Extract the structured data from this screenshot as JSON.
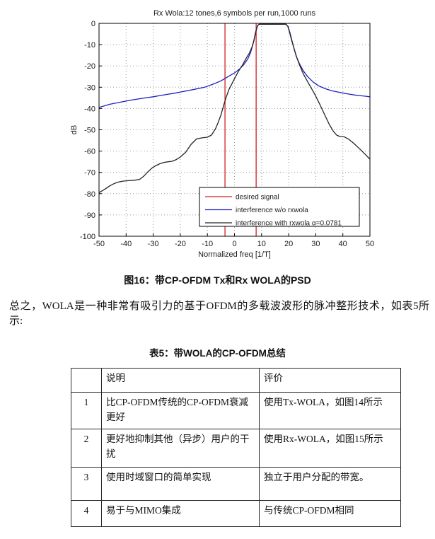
{
  "chart_data": {
    "type": "line",
    "title": "Rx Wola:12 tones,6 symbols per run,1000 runs",
    "xlabel": "Normalized freq [1/T]",
    "ylabel": "dB",
    "xlim": [
      -50,
      50
    ],
    "ylim": [
      -100,
      0
    ],
    "xticks": [
      -50,
      -40,
      -30,
      -20,
      -10,
      0,
      10,
      20,
      30,
      40,
      50
    ],
    "yticks": [
      0,
      -10,
      -20,
      -30,
      -40,
      -50,
      -60,
      -70,
      -80,
      -90,
      -100
    ],
    "grid": true,
    "legend": {
      "position": "south-center-inside"
    },
    "colors": {
      "desired": "#d02020",
      "no_rxwola": "#2020c0",
      "with_rxwola": "#252525",
      "grid": "#999999",
      "axis": "#000000"
    },
    "series": [
      {
        "name": "desired signal",
        "style": "vlines",
        "color": "#d02020",
        "x": [
          -3.5,
          8
        ],
        "y_span": [
          0,
          -100
        ]
      },
      {
        "name": "interference w/o rxwola",
        "style": "line",
        "color": "#2020c0",
        "points": [
          [
            -50,
            -39.5
          ],
          [
            -46,
            -38
          ],
          [
            -42,
            -37
          ],
          [
            -38,
            -36
          ],
          [
            -34,
            -35.2
          ],
          [
            -30,
            -34.5
          ],
          [
            -26,
            -33.6
          ],
          [
            -22,
            -32.8
          ],
          [
            -18,
            -31.8
          ],
          [
            -14,
            -30.8
          ],
          [
            -11,
            -30
          ],
          [
            -8,
            -28.6
          ],
          [
            -5,
            -27
          ],
          [
            -2,
            -24.8
          ],
          [
            0,
            -23.3
          ],
          [
            2,
            -21.3
          ],
          [
            3.5,
            -19.3
          ],
          [
            5,
            -16.5
          ],
          [
            6,
            -13.5
          ],
          [
            7,
            -9
          ],
          [
            7.8,
            -4
          ],
          [
            8.5,
            -1
          ],
          [
            9.2,
            -0.4
          ],
          [
            19,
            -0.4
          ],
          [
            19.8,
            -1.5
          ],
          [
            20.5,
            -4.5
          ],
          [
            21.2,
            -8
          ],
          [
            22,
            -12
          ],
          [
            23,
            -16
          ],
          [
            24,
            -19
          ],
          [
            25.5,
            -22.5
          ],
          [
            27,
            -25
          ],
          [
            29,
            -27.5
          ],
          [
            31,
            -29.3
          ],
          [
            33.5,
            -30.7
          ],
          [
            36,
            -31.7
          ],
          [
            39,
            -32.5
          ],
          [
            42,
            -33.2
          ],
          [
            45,
            -33.8
          ],
          [
            48,
            -34.2
          ],
          [
            50,
            -34.5
          ]
        ]
      },
      {
        "name": "interference with rxwola α=0.0781",
        "style": "line",
        "color": "#252525",
        "points": [
          [
            -50,
            -79.5
          ],
          [
            -48,
            -78
          ],
          [
            -46,
            -76.3
          ],
          [
            -44.5,
            -75.3
          ],
          [
            -43,
            -74.6
          ],
          [
            -41,
            -74.1
          ],
          [
            -39,
            -73.9
          ],
          [
            -37,
            -73.7
          ],
          [
            -35,
            -73.3
          ],
          [
            -33.5,
            -71.8
          ],
          [
            -32,
            -69.8
          ],
          [
            -30.5,
            -68
          ],
          [
            -29,
            -66.8
          ],
          [
            -27.5,
            -65.9
          ],
          [
            -26,
            -65.3
          ],
          [
            -24.5,
            -65
          ],
          [
            -23,
            -64.8
          ],
          [
            -21.5,
            -64
          ],
          [
            -20,
            -62.8
          ],
          [
            -18,
            -60.5
          ],
          [
            -16,
            -56.8
          ],
          [
            -14,
            -54.3
          ],
          [
            -12,
            -53.8
          ],
          [
            -10,
            -53.5
          ],
          [
            -8.5,
            -52.5
          ],
          [
            -7,
            -49.5
          ],
          [
            -6,
            -46.5
          ],
          [
            -5,
            -43
          ],
          [
            -4,
            -38.5
          ],
          [
            -3,
            -34.5
          ],
          [
            -2,
            -31
          ],
          [
            -1,
            -28.5
          ],
          [
            0,
            -26
          ],
          [
            1.5,
            -22.5
          ],
          [
            3,
            -19.5
          ],
          [
            4.5,
            -16
          ],
          [
            5.5,
            -14
          ],
          [
            6.5,
            -11
          ],
          [
            7.2,
            -8
          ],
          [
            7.8,
            -4.5
          ],
          [
            8.5,
            -1
          ],
          [
            9.2,
            -0.4
          ],
          [
            19,
            -0.4
          ],
          [
            19.7,
            -1.5
          ],
          [
            20.3,
            -4
          ],
          [
            21,
            -7.5
          ],
          [
            21.8,
            -11
          ],
          [
            22.7,
            -15
          ],
          [
            24,
            -19.5
          ],
          [
            25.5,
            -24
          ],
          [
            27.5,
            -28.5
          ],
          [
            29.5,
            -33
          ],
          [
            31.5,
            -38
          ],
          [
            33.5,
            -43.5
          ],
          [
            35,
            -47.5
          ],
          [
            36.5,
            -50.7
          ],
          [
            37.7,
            -52.5
          ],
          [
            39,
            -53.2
          ],
          [
            40.5,
            -53.3
          ],
          [
            42,
            -54.3
          ],
          [
            44,
            -56.3
          ],
          [
            46,
            -58.7
          ],
          [
            48,
            -61.2
          ],
          [
            50,
            -63.8
          ]
        ]
      }
    ]
  },
  "figure_caption": "图16：带CP-OFDM Tx和Rx WOLA的PSD",
  "paragraph": "总之，WOLA是一种非常有吸引力的基于OFDM的多载波波形的脉冲整形技术，如表5所示:",
  "table_caption": "表5：带WOLA的CP-OFDM总结",
  "table": {
    "headers": [
      "",
      "说明",
      "评价"
    ],
    "rows": [
      {
        "num": "1",
        "desc": "比CP-OFDM传统的CP-OFDM衰减更好",
        "eval": "使用Tx-WOLA，如图14所示"
      },
      {
        "num": "2",
        "desc": "更好地抑制其他（异步）用户的干扰",
        "eval": "使用Rx-WOLA，如图15所示"
      },
      {
        "num": "3",
        "desc": "使用时域窗口的简单实现",
        "eval": "独立于用户分配的带宽。"
      },
      {
        "num": "4",
        "desc": "易于与MIMO集成",
        "eval": "与传统CP-OFDM相同"
      }
    ]
  }
}
